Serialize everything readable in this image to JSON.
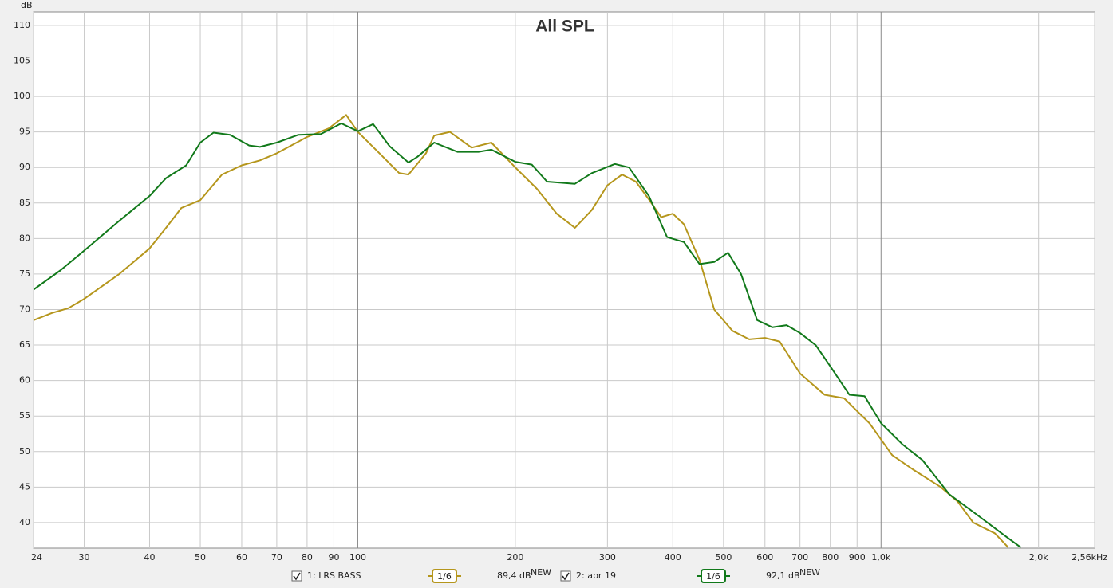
{
  "chart_data": {
    "type": "line",
    "title": "All SPL",
    "y_label": "dB",
    "x_scale": "log",
    "grid": true,
    "xlim": [
      24,
      2560
    ],
    "ylim": [
      36.4,
      111.9
    ],
    "xticks": [
      24,
      30,
      40,
      50,
      60,
      70,
      80,
      90,
      100,
      200,
      300,
      400,
      500,
      600,
      700,
      800,
      900,
      {
        "value": 1000,
        "label": "1,0k"
      },
      {
        "value": 2000,
        "label": "2,0k"
      },
      {
        "value": 2560,
        "label": "2,56kHz"
      }
    ],
    "yticks": [
      40,
      45,
      50,
      55,
      60,
      65,
      70,
      75,
      80,
      85,
      90,
      95,
      100,
      105,
      110
    ],
    "series": [
      {
        "name": "1: LRS BASS",
        "color": "#b5961c",
        "smoothing": "1/6",
        "level": "89,4 dB",
        "badge": "NEW",
        "x": [
          24,
          26,
          28,
          30,
          35,
          40,
          43,
          46,
          50,
          55,
          60,
          65,
          70,
          80,
          88,
          95,
          100,
          110,
          120,
          125,
          135,
          140,
          150,
          165,
          180,
          200,
          220,
          240,
          260,
          280,
          300,
          320,
          340,
          360,
          380,
          400,
          420,
          450,
          480,
          520,
          560,
          600,
          640,
          700,
          780,
          850,
          950,
          1050,
          1150,
          1300,
          1400,
          1500,
          1650,
          1750
        ],
        "values": [
          68.5,
          69.5,
          70.2,
          71.5,
          75,
          78.6,
          81.5,
          84.3,
          85.4,
          89,
          90.3,
          91,
          92,
          94.3,
          95.5,
          97.4,
          95,
          92,
          89.2,
          89,
          92,
          94.5,
          95,
          92.8,
          93.5,
          90,
          87,
          83.5,
          81.5,
          84,
          87.5,
          89,
          88,
          85.5,
          83,
          83.5,
          82,
          77,
          70,
          67,
          65.8,
          66,
          65.5,
          61,
          58,
          57.5,
          54,
          49.5,
          47.5,
          45,
          43,
          40,
          38.5,
          36.5
        ]
      },
      {
        "name": "2: apr 19",
        "color": "#11791a",
        "smoothing": "1/6",
        "level": "92,1 dB",
        "badge": "NEW",
        "x": [
          24,
          27,
          30,
          35,
          40,
          43,
          47,
          50,
          53,
          57,
          62,
          65,
          70,
          77,
          85,
          93,
          100,
          107,
          115,
          125,
          130,
          140,
          155,
          170,
          180,
          200,
          215,
          230,
          260,
          280,
          310,
          330,
          360,
          390,
          420,
          450,
          480,
          510,
          540,
          580,
          620,
          660,
          700,
          750,
          800,
          870,
          930,
          1000,
          1100,
          1200,
          1350,
          1500,
          1700,
          1850
        ],
        "values": [
          72.8,
          75.5,
          78.3,
          82.5,
          86,
          88.5,
          90.3,
          93.5,
          94.9,
          94.6,
          93.1,
          92.9,
          93.5,
          94.6,
          94.7,
          96.2,
          95.1,
          96.1,
          93,
          90.7,
          91.5,
          93.5,
          92.2,
          92.2,
          92.5,
          90.8,
          90.4,
          88,
          87.7,
          89.2,
          90.5,
          90,
          86,
          80.2,
          79.5,
          76.4,
          76.7,
          78,
          75,
          68.5,
          67.5,
          67.8,
          66.7,
          65,
          62,
          58,
          57.8,
          54,
          51,
          48.8,
          44,
          41.5,
          38.5,
          36.5
        ]
      }
    ]
  }
}
